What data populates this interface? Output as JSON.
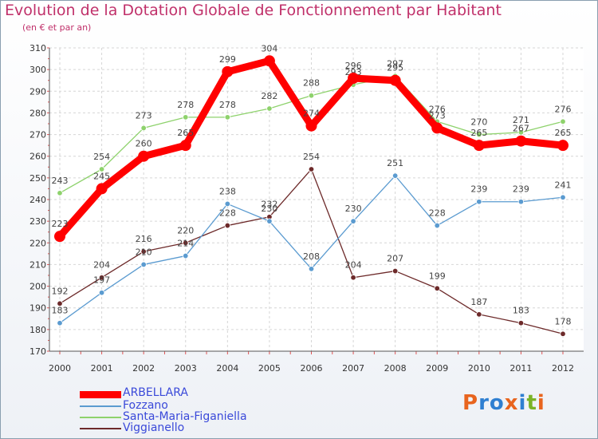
{
  "header": {
    "title": "Evolution de la Dotation Globale de Fonctionnement par Habitant",
    "subtitle": "(en € et par an)"
  },
  "logo": {
    "text": "Proxiti",
    "letters": [
      "P",
      "r",
      "o",
      "x",
      "i",
      "t",
      "i"
    ],
    "colors": [
      "#e8641e",
      "#2f7fd1",
      "#2f7fd1",
      "#e8641e",
      "#2f7fd1",
      "#7ab327",
      "#e8641e"
    ]
  },
  "chart_data": {
    "type": "line",
    "title": "Evolution de la Dotation Globale de Fonctionnement par Habitant",
    "subtitle": "(en € et par an)",
    "xlabel": "",
    "ylabel": "",
    "x": [
      "2000",
      "2001",
      "2002",
      "2003",
      "2004",
      "2005",
      "2006",
      "2007",
      "2008",
      "2009",
      "2010",
      "2011",
      "2012"
    ],
    "ylim": [
      170,
      310
    ],
    "yticks": [
      170,
      180,
      190,
      200,
      210,
      220,
      230,
      240,
      250,
      260,
      270,
      280,
      290,
      300,
      310
    ],
    "grid": true,
    "legend_position": "bottom-left",
    "series": [
      {
        "name": "ARBELLARA",
        "color": "#ff0000",
        "values": [
          223,
          245,
          260,
          265,
          299,
          304,
          274,
          296,
          295,
          273,
          265,
          267,
          265
        ]
      },
      {
        "name": "Fozzano",
        "color": "#5b9bd0",
        "values": [
          183,
          197,
          210,
          214,
          238,
          230,
          208,
          230,
          251,
          228,
          239,
          239,
          241
        ]
      },
      {
        "name": "Santa-Maria-Figaniella",
        "color": "#8ed26c",
        "values": [
          243,
          254,
          273,
          278,
          278,
          282,
          288,
          293,
          297,
          276,
          270,
          271,
          276
        ]
      },
      {
        "name": "Viggianello",
        "color": "#6d2a2a",
        "values": [
          192,
          204,
          216,
          220,
          228,
          232,
          254,
          204,
          207,
          199,
          187,
          183,
          178
        ]
      }
    ]
  }
}
